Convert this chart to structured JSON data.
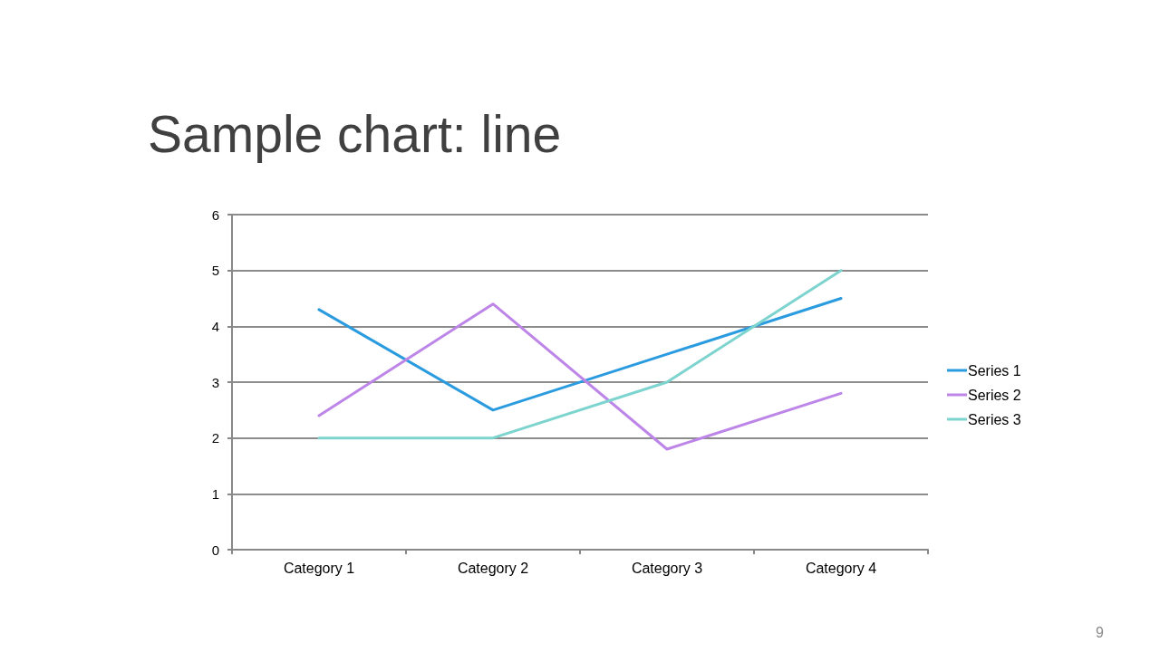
{
  "chart_data": {
    "type": "line",
    "title": "Sample chart: line",
    "categories": [
      "Category 1",
      "Category 2",
      "Category 3",
      "Category 4"
    ],
    "series": [
      {
        "name": "Series 1",
        "color": "#2b9be0",
        "values": [
          4.3,
          2.5,
          3.5,
          4.5
        ]
      },
      {
        "name": "Series 2",
        "color": "#bd85e8",
        "values": [
          2.4,
          4.4,
          1.8,
          2.8
        ]
      },
      {
        "name": "Series 3",
        "color": "#7dd4cf",
        "values": [
          2,
          2,
          3,
          5
        ]
      }
    ],
    "ylim": [
      0,
      6
    ],
    "yticks": [
      0,
      1,
      2,
      3,
      4,
      5,
      6
    ],
    "grid": "y",
    "legend": "right",
    "marker": "none",
    "line_style": "solid",
    "annotations": [
      "9"
    ]
  }
}
